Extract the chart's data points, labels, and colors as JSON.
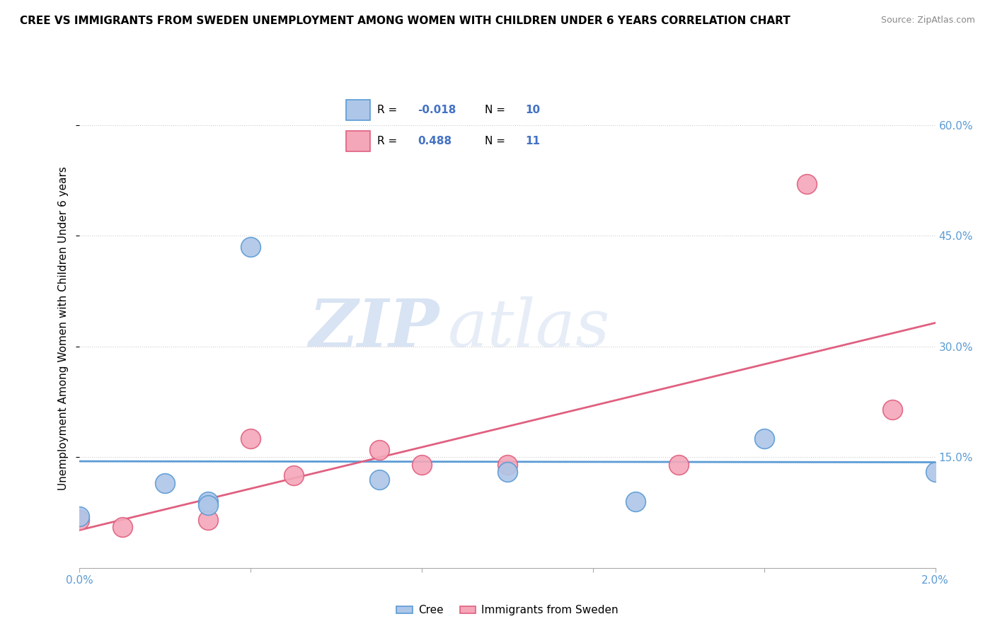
{
  "title": "CREE VS IMMIGRANTS FROM SWEDEN UNEMPLOYMENT AMONG WOMEN WITH CHILDREN UNDER 6 YEARS CORRELATION CHART",
  "source": "Source: ZipAtlas.com",
  "ylabel": "Unemployment Among Women with Children Under 6 years",
  "xlim": [
    0.0,
    0.02
  ],
  "ylim": [
    0.0,
    0.65
  ],
  "yticks": [
    0.15,
    0.3,
    0.45,
    0.6
  ],
  "ytick_labels": [
    "15.0%",
    "30.0%",
    "45.0%",
    "60.0%"
  ],
  "cree_R": "-0.018",
  "cree_N": "10",
  "sweden_R": "0.488",
  "sweden_N": "11",
  "cree_color": "#aec6e8",
  "cree_line_color": "#5b9bd5",
  "sweden_color": "#f4a7b9",
  "sweden_line_color": "#e06080",
  "watermark_zip": "ZIP",
  "watermark_atlas": "atlas",
  "cree_points_x": [
    0.0,
    0.002,
    0.003,
    0.003,
    0.004,
    0.007,
    0.01,
    0.013,
    0.016,
    0.02
  ],
  "cree_points_y": [
    0.07,
    0.115,
    0.09,
    0.085,
    0.435,
    0.12,
    0.13,
    0.09,
    0.175,
    0.13
  ],
  "sweden_points_x": [
    0.0,
    0.001,
    0.003,
    0.004,
    0.005,
    0.007,
    0.008,
    0.01,
    0.014,
    0.017,
    0.019
  ],
  "sweden_points_y": [
    0.065,
    0.055,
    0.065,
    0.175,
    0.125,
    0.16,
    0.14,
    0.14,
    0.14,
    0.52,
    0.215
  ]
}
